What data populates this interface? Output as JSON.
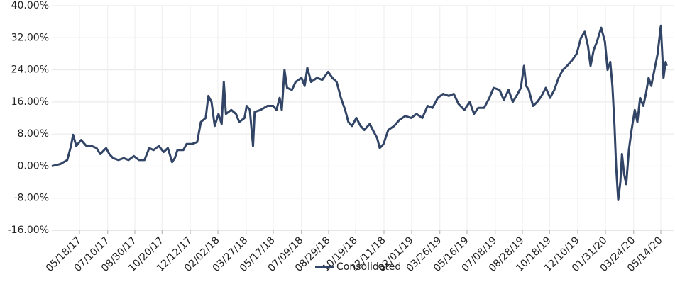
{
  "chart_data": {
    "type": "line",
    "x": [
      "03/27/17",
      "04/12/17",
      "04/25/17",
      "05/02/17",
      "05/06/17",
      "05/12/17",
      "05/21/17",
      "05/31/17",
      "06/10/17",
      "06/19/17",
      "06/26/17",
      "07/07/17",
      "07/13/17",
      "07/20/17",
      "07/30/17",
      "08/09/17",
      "08/18/17",
      "08/28/17",
      "09/07/17",
      "09/17/17",
      "09/26/17",
      "10/04/17",
      "10/14/17",
      "10/23/17",
      "10/31/17",
      "11/08/17",
      "11/13/17",
      "11/18/17",
      "11/29/17",
      "12/05/17",
      "12/15/17",
      "12/25/17",
      "01/01/18",
      "01/10/18",
      "01/15/18",
      "01/21/18",
      "01/27/18",
      "02/03/18",
      "02/09/18",
      "02/13/18",
      "02/17/18",
      "02/27/18",
      "03/08/18",
      "03/14/18",
      "03/24/18",
      "03/28/18",
      "04/03/18",
      "04/09/18",
      "04/12/18",
      "04/23/18",
      "05/06/18",
      "05/17/18",
      "05/23/18",
      "05/29/18",
      "06/02/18",
      "06/07/18",
      "06/12/18",
      "06/21/18",
      "06/28/18",
      "07/09/18",
      "07/15/18",
      "07/20/18",
      "07/27/18",
      "08/07/18",
      "08/17/18",
      "08/28/18",
      "09/05/18",
      "09/13/18",
      "09/21/18",
      "09/29/18",
      "10/05/18",
      "10/12/18",
      "10/20/18",
      "10/28/18",
      "11/04/18",
      "11/14/18",
      "11/20/18",
      "11/28/18",
      "12/03/18",
      "12/10/18",
      "12/19/18",
      "12/30/18",
      "01/09/19",
      "01/20/19",
      "01/31/19",
      "02/10/19",
      "02/21/19",
      "03/03/19",
      "03/12/19",
      "03/22/19",
      "04/01/19",
      "04/12/19",
      "04/21/19",
      "04/30/19",
      "05/11/19",
      "05/21/19",
      "05/29/19",
      "06/06/19",
      "06/17/19",
      "06/27/19",
      "07/05/19",
      "07/16/19",
      "07/24/19",
      "08/02/19",
      "08/10/19",
      "08/19/19",
      "08/25/19",
      "08/31/19",
      "09/04/19",
      "09/09/19",
      "09/17/19",
      "09/25/19",
      "10/03/19",
      "10/11/19",
      "10/19/19",
      "10/27/19",
      "11/04/19",
      "11/12/19",
      "11/20/19",
      "11/30/19",
      "12/08/19",
      "12/16/19",
      "12/23/19",
      "12/29/19",
      "01/03/20",
      "01/09/20",
      "01/15/20",
      "01/23/20",
      "01/30/20",
      "02/04/20",
      "02/09/20",
      "02/13/20",
      "02/17/20",
      "02/20/20",
      "02/24/20",
      "02/28/20",
      "03/02/20",
      "03/06/20",
      "03/10/20",
      "03/15/20",
      "03/20/20",
      "03/26/20",
      "03/31/20",
      "04/05/20",
      "04/11/20",
      "04/16/20",
      "04/21/20",
      "04/26/20",
      "05/02/20",
      "05/08/20",
      "05/14/20",
      "05/19/20",
      "05/23/20",
      "05/25/20"
    ],
    "series": [
      {
        "name": "Consolidated",
        "color": "#324566",
        "values": [
          0,
          0.5,
          1.5,
          5,
          7.8,
          5,
          6.5,
          5,
          5,
          4.5,
          3,
          4.5,
          3,
          2,
          1.5,
          2,
          1.5,
          2.5,
          1.5,
          1.5,
          4.5,
          4,
          5,
          3.5,
          4.5,
          1,
          2,
          4,
          4,
          5.5,
          5.5,
          6,
          11,
          12,
          17.5,
          16,
          10,
          13,
          10.5,
          21,
          13,
          14,
          13,
          11,
          12,
          15,
          14,
          5,
          13.5,
          14,
          15,
          15,
          14,
          17,
          14,
          24,
          19.5,
          19,
          21,
          22,
          20,
          24.5,
          21,
          22,
          21.5,
          23.5,
          22,
          21,
          17,
          14,
          11,
          10,
          12,
          10,
          9,
          10.5,
          9,
          7,
          4.5,
          5.5,
          9,
          10,
          11.5,
          12.5,
          12,
          13,
          12,
          15,
          14.5,
          17,
          18,
          17.5,
          18,
          15.5,
          14,
          16,
          13,
          14.5,
          14.5,
          17,
          19.5,
          19,
          16.5,
          19,
          16,
          18,
          19.5,
          25,
          20,
          19,
          15,
          16,
          17.5,
          19.5,
          17,
          19,
          22,
          24,
          25,
          26.5,
          28,
          32,
          33.5,
          30,
          25,
          29,
          31,
          34.5,
          31,
          24,
          26,
          20,
          10,
          0,
          -8.5,
          -4,
          3,
          -2,
          -4.5,
          4,
          9,
          14,
          11,
          17,
          15,
          18,
          22,
          20,
          24,
          28,
          35,
          22,
          26,
          25
        ]
      }
    ],
    "xlim": [
      "03/27/17",
      "06/07/20"
    ],
    "xticks": [
      "05/18/17",
      "07/10/17",
      "08/30/17",
      "10/20/17",
      "12/12/17",
      "02/02/18",
      "03/27/18",
      "05/17/18",
      "07/09/18",
      "08/29/18",
      "10/19/18",
      "12/11/18",
      "02/01/19",
      "03/26/19",
      "05/16/19",
      "07/08/19",
      "08/28/19",
      "10/18/19",
      "12/10/19",
      "01/31/20",
      "03/24/20",
      "05/14/20"
    ],
    "ylim": [
      -16,
      40
    ],
    "yticks": [
      {
        "value": -16,
        "label": "-16.00%"
      },
      {
        "value": -8,
        "label": "-8.00%"
      },
      {
        "value": 0,
        "label": "0.00%"
      },
      {
        "value": 8,
        "label": "8.00%"
      },
      {
        "value": 16,
        "label": "16.00%"
      },
      {
        "value": 24,
        "label": "24.00%"
      },
      {
        "value": 32,
        "label": "32.00%"
      },
      {
        "value": 40,
        "label": "40.00%"
      }
    ],
    "grid": true,
    "legend": "bottom"
  }
}
